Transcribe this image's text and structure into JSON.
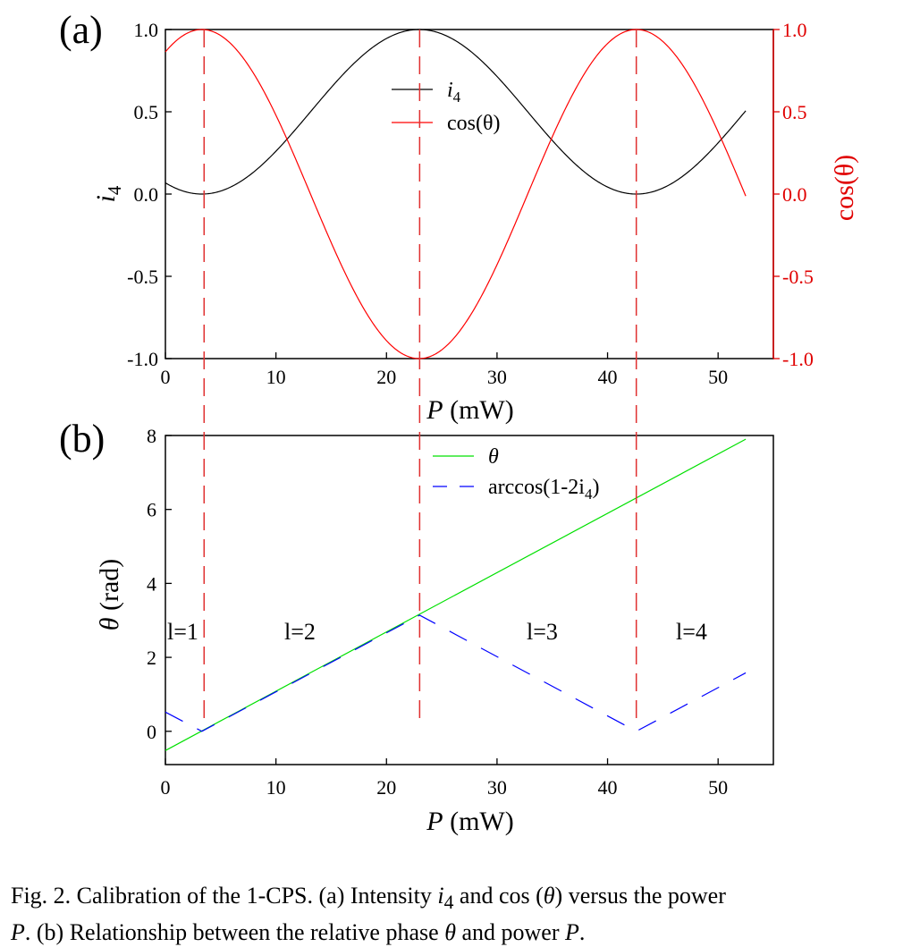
{
  "panel_a": {
    "label": "(a)",
    "ylabel_left": "i",
    "ylabel_left_sub": "4",
    "ylabel_right": "cos(θ)",
    "xlabel_var": "P",
    "xlabel_unit": " (mW)",
    "legend": [
      {
        "name": "i",
        "sub": "4",
        "color": "#000000"
      },
      {
        "name": "cos(θ)",
        "color": "#ff0000"
      }
    ],
    "xticks": [
      "0",
      "10",
      "20",
      "30",
      "40",
      "50"
    ],
    "yticks_left": [
      "1.0",
      "0.5",
      "0.0",
      "-0.5",
      "-1.0"
    ],
    "yticks_right": [
      "1.0",
      "0.5",
      "0.0",
      "-0.5",
      "-1.0"
    ]
  },
  "panel_b": {
    "label": "(b)",
    "ylabel_var": "θ",
    "ylabel_unit": " (rad)",
    "xlabel_var": "P",
    "xlabel_unit": " (mW)",
    "legend": [
      {
        "name": "θ",
        "color": "#00e000"
      },
      {
        "name": "arccos(1-2i",
        "sub": "4",
        "tail": ")",
        "color": "#0000ff"
      }
    ],
    "xticks": [
      "0",
      "10",
      "20",
      "30",
      "40",
      "50"
    ],
    "yticks": [
      "8",
      "6",
      "4",
      "2",
      "0"
    ],
    "regions": [
      "l=1",
      "l=2",
      "l=3",
      "l=4"
    ]
  },
  "chart_data": [
    {
      "type": "line",
      "panel": "(a)",
      "xlabel": "P (mW)",
      "ylabel": "i4",
      "ylabel_right": "cos(θ)",
      "xlim": [
        0,
        55
      ],
      "ylim": [
        -1.0,
        1.0
      ],
      "ylim_right": [
        -1.0,
        1.0
      ],
      "x": [
        0,
        3.3,
        10,
        23,
        35,
        42.6,
        50,
        52.5
      ],
      "series": [
        {
          "name": "i4",
          "color": "#000000",
          "axis": "left",
          "values": [
            0.06,
            0.0,
            0.32,
            1.0,
            0.35,
            0.0,
            0.32,
            0.52
          ]
        },
        {
          "name": "cos(θ)",
          "color": "#ff0000",
          "axis": "right",
          "values": [
            0.86,
            1.0,
            0.38,
            -1.0,
            0.35,
            1.0,
            0.36,
            -0.06
          ]
        }
      ],
      "vlines_dashed": [
        3.5,
        23,
        42.6
      ],
      "legend_position": "top-center"
    },
    {
      "type": "line",
      "panel": "(b)",
      "xlabel": "P (mW)",
      "ylabel": "θ (rad)",
      "xlim": [
        0,
        55
      ],
      "ylim": [
        -0.9,
        8
      ],
      "series": [
        {
          "name": "θ",
          "color": "#00e000",
          "style": "solid",
          "x": [
            0,
            52.5
          ],
          "values": [
            -0.52,
            7.9
          ]
        },
        {
          "name": "arccos(1-2i4)",
          "color": "#0000ff",
          "style": "dashed",
          "x": [
            0,
            3.3,
            23,
            42.6,
            52.5
          ],
          "values": [
            0.52,
            0.0,
            3.14,
            0.0,
            1.58
          ]
        }
      ],
      "vlines_dashed": [
        3.5,
        23,
        42.6
      ],
      "annotations": [
        "l=1",
        "l=2",
        "l=3",
        "l=4"
      ],
      "legend_position": "top-center"
    }
  ],
  "caption": {
    "lead": "Fig. 2.  Calibration of the 1-CPS. (a) Intensity ",
    "i": "i",
    "sub": "4",
    "mid1": " and cos (",
    "theta": "θ",
    "mid2": ") versus the power",
    "P1": "P",
    "mid3": ". (b) Relationship between the relative phase ",
    "theta2": "θ",
    "mid4": " and power ",
    "P2": "P",
    "end": "."
  }
}
